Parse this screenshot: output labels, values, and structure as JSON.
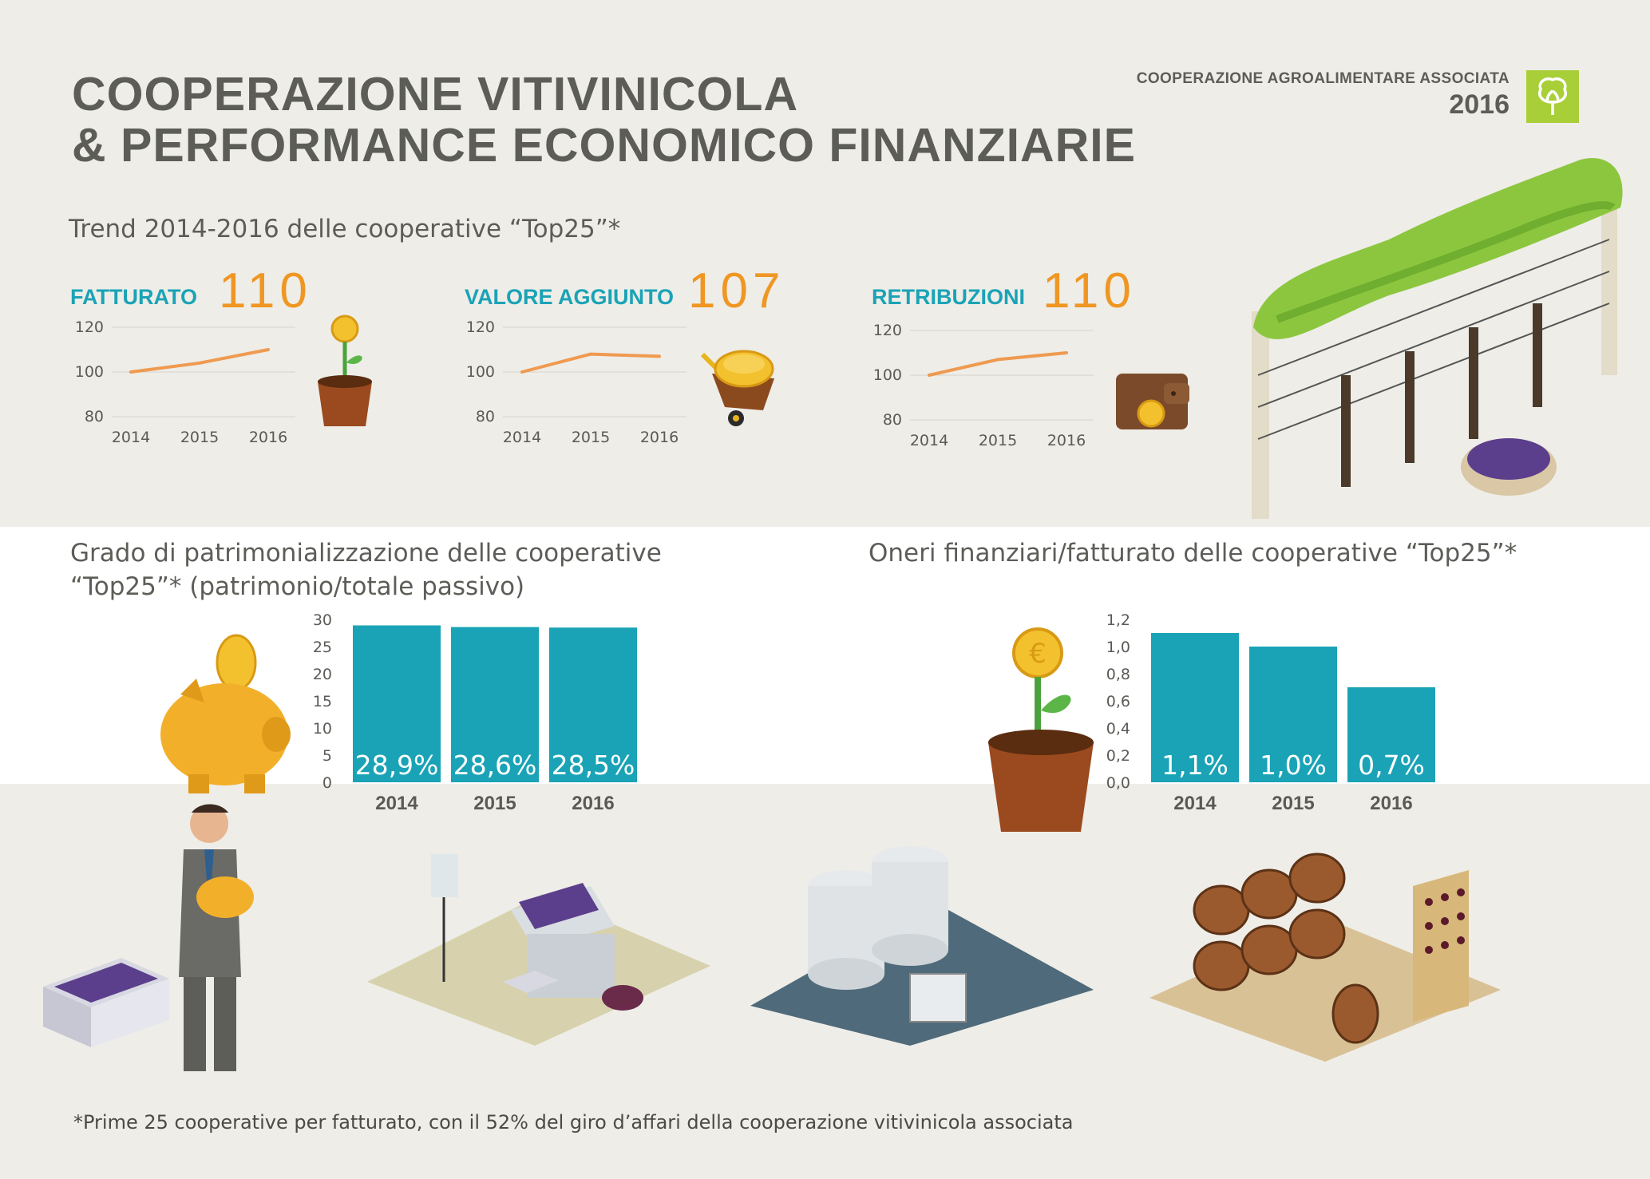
{
  "header": {
    "title_line1": "COOPERAZIONE VITIVINICOLA",
    "title_line2": "& PERFORMANCE ECONOMICO FINANZIARIE",
    "brand_name": "COOPERAZIONE AGROALIMENTARE ASSOCIATA",
    "brand_year": "2016"
  },
  "trend": {
    "subtitle": "Trend 2014-2016 delle cooperative “Top25”*"
  },
  "kpis": [
    {
      "label": "FATTURATO",
      "value": "110"
    },
    {
      "label": "VALORE AGGIUNTO",
      "value": "107"
    },
    {
      "label": "RETRIBUZIONI",
      "value": "110"
    }
  ],
  "patrimonio": {
    "subtitle_line1": "Grado di patrimonializzazione delle cooperative",
    "subtitle_line2": "“Top25”* (patrimonio/totale passivo)"
  },
  "oneri": {
    "subtitle": "Oneri finanziari/fatturato delle cooperative “Top25”*"
  },
  "footnote": "*Prime 25 cooperative per fatturato, con il 52% del giro d’affari della cooperazione vitivinicola associata",
  "colors": {
    "accent_teal": "#1aa3b6",
    "accent_orange": "#ef9623",
    "text_gray": "#5d5d58",
    "band_white": "#ffffff"
  },
  "icons": [
    "tree-logo-icon",
    "coin-flower-pot-icon",
    "coin-wheelbarrow-icon",
    "wallet-coin-icon",
    "piggy-bank-icon",
    "vineyard-icon",
    "businessman-icon",
    "crusher-machine-icon",
    "steel-tanks-icon",
    "barrel-cellar-icon",
    "grape-basket-icon"
  ],
  "chart_data": [
    {
      "type": "line",
      "name": "FATTURATO",
      "x": [
        "2014",
        "2015",
        "2016"
      ],
      "values": [
        100,
        104,
        110
      ],
      "yticks": [
        "120",
        "100",
        "80"
      ],
      "ylim": [
        80,
        120
      ],
      "grid": true
    },
    {
      "type": "line",
      "name": "VALORE AGGIUNTO",
      "x": [
        "2014",
        "2015",
        "2016"
      ],
      "values": [
        100,
        108,
        107
      ],
      "yticks": [
        "120",
        "100",
        "80"
      ],
      "ylim": [
        80,
        120
      ],
      "grid": true
    },
    {
      "type": "line",
      "name": "RETRIBUZIONI",
      "x": [
        "2014",
        "2015",
        "2016"
      ],
      "values": [
        100,
        107,
        110
      ],
      "yticks": [
        "120",
        "100",
        "80"
      ],
      "ylim": [
        80,
        120
      ],
      "grid": true
    },
    {
      "type": "bar",
      "categories": [
        "2014",
        "2015",
        "2016"
      ],
      "values": [
        28.9,
        28.6,
        28.5
      ],
      "labels": [
        "28,9%",
        "28,6%",
        "28,5%"
      ],
      "yticks": [
        "30",
        "25",
        "20",
        "15",
        "10",
        "5",
        "0"
      ],
      "ylim": [
        0,
        30
      ]
    },
    {
      "type": "bar",
      "categories": [
        "2014",
        "2015",
        "2016"
      ],
      "values": [
        1.1,
        1.0,
        0.7
      ],
      "labels": [
        "1,1%",
        "1,0%",
        "0,7%"
      ],
      "yticks": [
        "1,2",
        "1,0",
        "0,8",
        "0,6",
        "0,4",
        "0,2",
        "0,0"
      ],
      "ylim": [
        0,
        1.2
      ]
    }
  ]
}
